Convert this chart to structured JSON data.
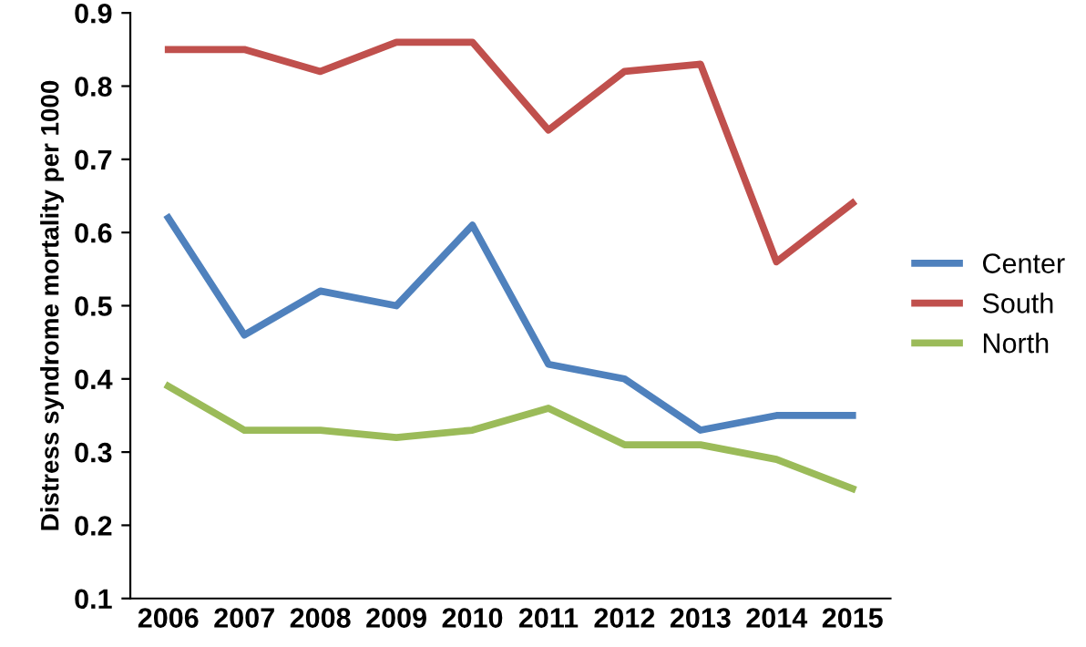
{
  "chart_data": {
    "type": "line",
    "ylabel": "Distress syndrome mortality per 1000",
    "categories": [
      "2006",
      "2007",
      "2008",
      "2009",
      "2010",
      "2011",
      "2012",
      "2013",
      "2014",
      "2015"
    ],
    "series": [
      {
        "name": "Center",
        "color": "#4f81bd",
        "values": [
          0.62,
          0.46,
          0.52,
          0.5,
          0.61,
          0.42,
          0.4,
          0.33,
          0.35,
          0.35
        ]
      },
      {
        "name": "South",
        "color": "#c0504d",
        "values": [
          0.85,
          0.85,
          0.82,
          0.86,
          0.86,
          0.74,
          0.82,
          0.83,
          0.56,
          0.64
        ]
      },
      {
        "name": "North",
        "color": "#9bbb59",
        "values": [
          0.39,
          0.33,
          0.33,
          0.32,
          0.33,
          0.36,
          0.31,
          0.31,
          0.29,
          0.25
        ]
      }
    ],
    "ylim": [
      0.1,
      0.9
    ],
    "yticks": [
      0.1,
      0.2,
      0.3,
      0.4,
      0.5,
      0.6,
      0.7,
      0.8,
      0.9
    ],
    "grid": false,
    "legend": "right",
    "marker": "none",
    "line_style": "solid"
  }
}
